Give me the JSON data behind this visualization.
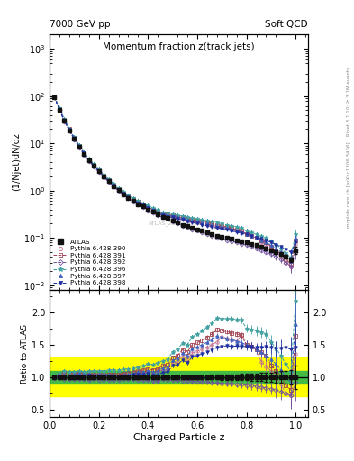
{
  "title_main": "Momentum fraction z(track jets)",
  "header_left": "7000 GeV pp",
  "header_right": "Soft QCD",
  "ylabel_main": "(1/Njet)dN/dz",
  "ylabel_ratio": "Ratio to ATLAS",
  "xlabel": "Charged Particle z",
  "right_label_top": "Rivet 3.1.10; ≥ 3.1M events",
  "right_label_bot": "mcplots.cern.ch [arXiv:1306.3436]",
  "watermark": "ATLAS_2011_I919017",
  "xlim": [
    0.0,
    1.05
  ],
  "ylim_main": [
    0.008,
    2000
  ],
  "ylim_ratio": [
    0.38,
    2.35
  ],
  "ratio_yticks": [
    0.5,
    1.0,
    1.5,
    2.0
  ],
  "series": [
    {
      "label": "ATLAS",
      "color": "#111111",
      "marker": "s",
      "ls": "none",
      "lw": 1.0,
      "ms": 3.5,
      "zorder": 10
    },
    {
      "label": "Pythia 6.428 390",
      "color": "#c07090",
      "marker": "o",
      "ls": "--",
      "lw": 0.7,
      "ms": 2.5,
      "zorder": 5
    },
    {
      "label": "Pythia 6.428 391",
      "color": "#a04050",
      "marker": "s",
      "ls": "--",
      "lw": 0.7,
      "ms": 2.5,
      "zorder": 5
    },
    {
      "label": "Pythia 6.428 392",
      "color": "#7050a0",
      "marker": "D",
      "ls": "--",
      "lw": 0.7,
      "ms": 2.5,
      "zorder": 5
    },
    {
      "label": "Pythia 6.428 396",
      "color": "#40a0a0",
      "marker": "*",
      "ls": "--",
      "lw": 0.7,
      "ms": 3.5,
      "zorder": 5
    },
    {
      "label": "Pythia 6.428 397",
      "color": "#4060c0",
      "marker": "^",
      "ls": "--",
      "lw": 0.7,
      "ms": 2.5,
      "zorder": 5
    },
    {
      "label": "Pythia 6.428 398",
      "color": "#2030a0",
      "marker": "v",
      "ls": "--",
      "lw": 0.7,
      "ms": 2.5,
      "zorder": 5
    }
  ],
  "x_data": [
    0.02,
    0.04,
    0.06,
    0.08,
    0.1,
    0.12,
    0.14,
    0.16,
    0.18,
    0.2,
    0.22,
    0.24,
    0.26,
    0.28,
    0.3,
    0.32,
    0.34,
    0.36,
    0.38,
    0.4,
    0.42,
    0.44,
    0.46,
    0.48,
    0.5,
    0.52,
    0.54,
    0.56,
    0.58,
    0.6,
    0.62,
    0.64,
    0.66,
    0.68,
    0.7,
    0.72,
    0.74,
    0.76,
    0.78,
    0.8,
    0.82,
    0.84,
    0.86,
    0.88,
    0.9,
    0.92,
    0.94,
    0.96,
    0.98,
    1.0
  ],
  "atlas_y": [
    95,
    52,
    30,
    19,
    12.5,
    8.5,
    6.0,
    4.4,
    3.3,
    2.55,
    2.0,
    1.58,
    1.25,
    1.02,
    0.84,
    0.7,
    0.6,
    0.52,
    0.46,
    0.4,
    0.36,
    0.32,
    0.28,
    0.26,
    0.23,
    0.21,
    0.19,
    0.18,
    0.16,
    0.15,
    0.14,
    0.13,
    0.12,
    0.11,
    0.105,
    0.1,
    0.095,
    0.09,
    0.085,
    0.08,
    0.075,
    0.07,
    0.065,
    0.06,
    0.055,
    0.05,
    0.045,
    0.04,
    0.035,
    0.055
  ],
  "atlas_yerr_lo": [
    2,
    1.2,
    0.7,
    0.5,
    0.3,
    0.2,
    0.15,
    0.11,
    0.08,
    0.06,
    0.05,
    0.04,
    0.03,
    0.025,
    0.02,
    0.018,
    0.015,
    0.013,
    0.011,
    0.01,
    0.009,
    0.008,
    0.007,
    0.007,
    0.006,
    0.006,
    0.005,
    0.005,
    0.005,
    0.004,
    0.004,
    0.004,
    0.004,
    0.004,
    0.004,
    0.004,
    0.004,
    0.004,
    0.004,
    0.004,
    0.004,
    0.004,
    0.004,
    0.004,
    0.004,
    0.004,
    0.004,
    0.004,
    0.004,
    0.01
  ],
  "atlas_yerr_hi": [
    2,
    1.2,
    0.7,
    0.5,
    0.3,
    0.2,
    0.15,
    0.11,
    0.08,
    0.06,
    0.05,
    0.04,
    0.03,
    0.025,
    0.02,
    0.018,
    0.015,
    0.013,
    0.011,
    0.01,
    0.009,
    0.008,
    0.007,
    0.007,
    0.006,
    0.006,
    0.005,
    0.005,
    0.005,
    0.004,
    0.004,
    0.004,
    0.004,
    0.004,
    0.004,
    0.004,
    0.004,
    0.004,
    0.004,
    0.004,
    0.004,
    0.004,
    0.004,
    0.004,
    0.004,
    0.004,
    0.004,
    0.004,
    0.004,
    0.01
  ],
  "mc_y_sets": [
    [
      95,
      53,
      31,
      19.5,
      12.8,
      8.8,
      6.1,
      4.5,
      3.35,
      2.6,
      2.05,
      1.62,
      1.28,
      1.04,
      0.87,
      0.73,
      0.63,
      0.55,
      0.49,
      0.43,
      0.38,
      0.35,
      0.31,
      0.29,
      0.28,
      0.26,
      0.25,
      0.23,
      0.22,
      0.21,
      0.2,
      0.19,
      0.18,
      0.17,
      0.17,
      0.16,
      0.15,
      0.14,
      0.14,
      0.12,
      0.11,
      0.1,
      0.08,
      0.07,
      0.06,
      0.05,
      0.04,
      0.03,
      0.025,
      0.075
    ],
    [
      96,
      54,
      32,
      20,
      13.2,
      9.0,
      6.3,
      4.6,
      3.45,
      2.65,
      2.08,
      1.65,
      1.3,
      1.06,
      0.88,
      0.75,
      0.65,
      0.57,
      0.51,
      0.45,
      0.4,
      0.36,
      0.33,
      0.31,
      0.3,
      0.28,
      0.27,
      0.25,
      0.24,
      0.23,
      0.22,
      0.21,
      0.2,
      0.19,
      0.18,
      0.17,
      0.16,
      0.15,
      0.14,
      0.12,
      0.11,
      0.1,
      0.09,
      0.08,
      0.065,
      0.055,
      0.045,
      0.035,
      0.028,
      0.09
    ],
    [
      94,
      51,
      29,
      18.5,
      12.2,
      8.2,
      5.8,
      4.2,
      3.2,
      2.45,
      1.92,
      1.52,
      1.2,
      0.98,
      0.81,
      0.68,
      0.58,
      0.5,
      0.44,
      0.38,
      0.34,
      0.3,
      0.27,
      0.25,
      0.22,
      0.2,
      0.18,
      0.17,
      0.15,
      0.14,
      0.13,
      0.12,
      0.11,
      0.1,
      0.095,
      0.09,
      0.085,
      0.08,
      0.075,
      0.07,
      0.065,
      0.06,
      0.055,
      0.05,
      0.045,
      0.04,
      0.035,
      0.03,
      0.025,
      0.05
    ],
    [
      97,
      55,
      33,
      20.5,
      13.5,
      9.3,
      6.5,
      4.8,
      3.6,
      2.8,
      2.2,
      1.75,
      1.38,
      1.13,
      0.94,
      0.79,
      0.68,
      0.6,
      0.54,
      0.48,
      0.43,
      0.39,
      0.35,
      0.33,
      0.32,
      0.3,
      0.29,
      0.27,
      0.26,
      0.25,
      0.24,
      0.23,
      0.22,
      0.21,
      0.2,
      0.19,
      0.18,
      0.17,
      0.16,
      0.14,
      0.13,
      0.12,
      0.11,
      0.1,
      0.085,
      0.072,
      0.06,
      0.048,
      0.038,
      0.12
    ],
    [
      96,
      53,
      31,
      19.5,
      12.9,
      8.9,
      6.2,
      4.6,
      3.4,
      2.65,
      2.08,
      1.64,
      1.29,
      1.05,
      0.87,
      0.73,
      0.63,
      0.56,
      0.5,
      0.44,
      0.39,
      0.35,
      0.32,
      0.3,
      0.29,
      0.27,
      0.26,
      0.24,
      0.23,
      0.22,
      0.21,
      0.2,
      0.19,
      0.18,
      0.17,
      0.16,
      0.15,
      0.14,
      0.13,
      0.12,
      0.11,
      0.1,
      0.09,
      0.08,
      0.07,
      0.06,
      0.05,
      0.04,
      0.032,
      0.1
    ],
    [
      95,
      52,
      30.5,
      19.2,
      12.6,
      8.6,
      6.1,
      4.5,
      3.35,
      2.58,
      2.03,
      1.6,
      1.26,
      1.03,
      0.85,
      0.71,
      0.62,
      0.54,
      0.48,
      0.42,
      0.37,
      0.33,
      0.3,
      0.28,
      0.27,
      0.25,
      0.24,
      0.22,
      0.21,
      0.2,
      0.19,
      0.18,
      0.17,
      0.16,
      0.155,
      0.148,
      0.14,
      0.133,
      0.125,
      0.118,
      0.11,
      0.102,
      0.095,
      0.088,
      0.08,
      0.072,
      0.065,
      0.058,
      0.05,
      0.08
    ]
  ],
  "mc_yerr_sets": [
    [
      1.5,
      0.9,
      0.55,
      0.38,
      0.25,
      0.17,
      0.12,
      0.09,
      0.07,
      0.055,
      0.045,
      0.035,
      0.028,
      0.023,
      0.019,
      0.016,
      0.014,
      0.012,
      0.011,
      0.01,
      0.009,
      0.008,
      0.007,
      0.007,
      0.006,
      0.006,
      0.005,
      0.005,
      0.005,
      0.004,
      0.004,
      0.004,
      0.004,
      0.004,
      0.004,
      0.004,
      0.004,
      0.004,
      0.004,
      0.005,
      0.005,
      0.005,
      0.005,
      0.005,
      0.005,
      0.006,
      0.006,
      0.007,
      0.007,
      0.02
    ],
    [
      1.5,
      0.9,
      0.55,
      0.38,
      0.25,
      0.17,
      0.12,
      0.09,
      0.07,
      0.055,
      0.045,
      0.035,
      0.028,
      0.023,
      0.019,
      0.016,
      0.014,
      0.012,
      0.011,
      0.01,
      0.009,
      0.008,
      0.007,
      0.007,
      0.006,
      0.006,
      0.005,
      0.005,
      0.005,
      0.004,
      0.004,
      0.004,
      0.004,
      0.004,
      0.004,
      0.004,
      0.004,
      0.004,
      0.004,
      0.005,
      0.005,
      0.005,
      0.005,
      0.005,
      0.006,
      0.006,
      0.007,
      0.007,
      0.008,
      0.025
    ],
    [
      1.5,
      0.9,
      0.55,
      0.38,
      0.25,
      0.17,
      0.12,
      0.09,
      0.07,
      0.055,
      0.045,
      0.035,
      0.028,
      0.023,
      0.019,
      0.016,
      0.014,
      0.012,
      0.011,
      0.01,
      0.009,
      0.008,
      0.007,
      0.007,
      0.006,
      0.006,
      0.005,
      0.005,
      0.005,
      0.004,
      0.004,
      0.004,
      0.004,
      0.004,
      0.004,
      0.004,
      0.004,
      0.004,
      0.004,
      0.005,
      0.005,
      0.005,
      0.005,
      0.005,
      0.005,
      0.006,
      0.006,
      0.007,
      0.007,
      0.015
    ],
    [
      1.5,
      0.9,
      0.55,
      0.38,
      0.25,
      0.17,
      0.12,
      0.09,
      0.07,
      0.055,
      0.045,
      0.035,
      0.028,
      0.023,
      0.019,
      0.016,
      0.014,
      0.012,
      0.011,
      0.01,
      0.009,
      0.008,
      0.007,
      0.007,
      0.006,
      0.006,
      0.005,
      0.005,
      0.005,
      0.004,
      0.004,
      0.004,
      0.004,
      0.004,
      0.004,
      0.004,
      0.004,
      0.004,
      0.004,
      0.005,
      0.005,
      0.005,
      0.005,
      0.005,
      0.006,
      0.006,
      0.007,
      0.007,
      0.008,
      0.03
    ],
    [
      1.5,
      0.9,
      0.55,
      0.38,
      0.25,
      0.17,
      0.12,
      0.09,
      0.07,
      0.055,
      0.045,
      0.035,
      0.028,
      0.023,
      0.019,
      0.016,
      0.014,
      0.012,
      0.011,
      0.01,
      0.009,
      0.008,
      0.007,
      0.007,
      0.006,
      0.006,
      0.005,
      0.005,
      0.005,
      0.004,
      0.004,
      0.004,
      0.004,
      0.004,
      0.004,
      0.004,
      0.004,
      0.004,
      0.004,
      0.005,
      0.005,
      0.005,
      0.005,
      0.005,
      0.005,
      0.006,
      0.006,
      0.007,
      0.007,
      0.025
    ],
    [
      1.5,
      0.9,
      0.55,
      0.38,
      0.25,
      0.17,
      0.12,
      0.09,
      0.07,
      0.055,
      0.045,
      0.035,
      0.028,
      0.023,
      0.019,
      0.016,
      0.014,
      0.012,
      0.011,
      0.01,
      0.009,
      0.008,
      0.007,
      0.007,
      0.006,
      0.006,
      0.005,
      0.005,
      0.005,
      0.004,
      0.004,
      0.004,
      0.004,
      0.004,
      0.004,
      0.004,
      0.004,
      0.004,
      0.004,
      0.005,
      0.005,
      0.005,
      0.005,
      0.005,
      0.005,
      0.006,
      0.006,
      0.007,
      0.007,
      0.022
    ]
  ]
}
